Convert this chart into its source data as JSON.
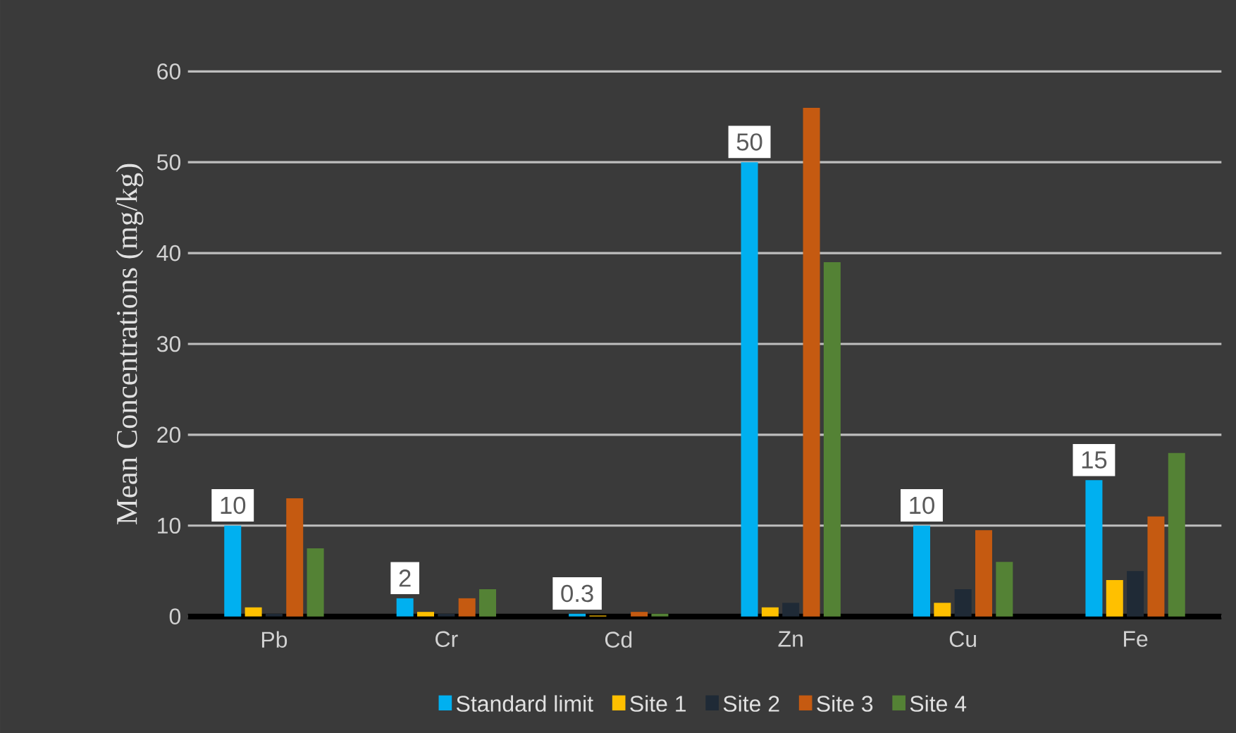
{
  "chart_data": {
    "type": "bar",
    "ylabel": "Mean Concentrations (mg/kg)",
    "categories": [
      "Pb",
      "Cr",
      "Cd",
      "Zn",
      "Cu",
      "Fe"
    ],
    "series": [
      {
        "name": "Standard limit",
        "color": "#00b0f0",
        "values": [
          10,
          2,
          0.3,
          50,
          10,
          15
        ],
        "value_labels": [
          "10",
          "2",
          "0.3",
          "50",
          "10",
          "15"
        ]
      },
      {
        "name": "Site 1",
        "color": "#ffc000",
        "values": [
          1,
          0.5,
          0.1,
          1,
          1.5,
          4
        ]
      },
      {
        "name": "Site 2",
        "color": "#1f2a36",
        "values": [
          0.3,
          0.3,
          null,
          1.5,
          3,
          5
        ]
      },
      {
        "name": "Site 3",
        "color": "#c55a11",
        "values": [
          13,
          2,
          0.5,
          56,
          9.5,
          11
        ]
      },
      {
        "name": "Site 4",
        "color": "#548235",
        "values": [
          7.5,
          3,
          0.3,
          39,
          6,
          18
        ]
      }
    ],
    "ylim": [
      0,
      60
    ],
    "yticks": [
      0,
      10,
      20,
      30,
      40,
      50,
      60
    ],
    "grid": "y",
    "legend": "bottom"
  }
}
